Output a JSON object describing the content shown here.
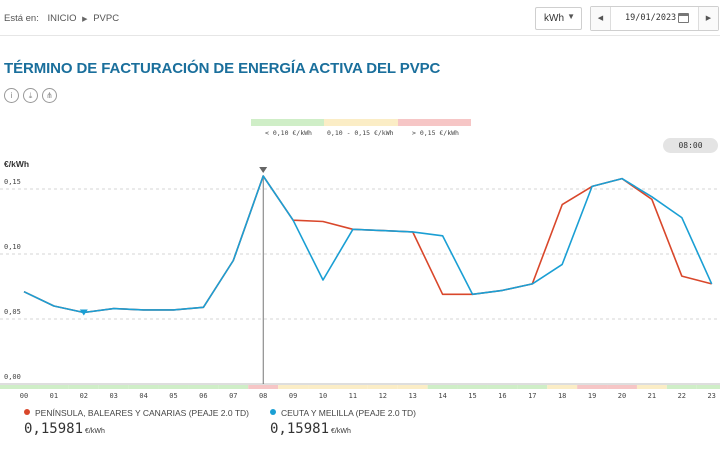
{
  "header": {
    "breadcrumb_label": "Está en:",
    "breadcrumb_items": [
      "INICIO",
      "PVPC"
    ],
    "unit_select": "kWh",
    "date": "19/01/2023"
  },
  "title": "TÉRMINO DE FACTURACIÓN DE ENERGÍA ACTIVA DEL PVPC",
  "tools": [
    {
      "name": "info-icon",
      "glyph": "i"
    },
    {
      "name": "download-icon",
      "glyph": "⤓"
    },
    {
      "name": "share-icon",
      "glyph": "⋔"
    }
  ],
  "price_legend": [
    {
      "label": "< 0,10 €/kWh",
      "color": "#cfeec7"
    },
    {
      "label": "0,10 - 0,15 €/kWh",
      "color": "#fbedc6"
    },
    {
      "label": "> 0,15 €/kWh",
      "color": "#f6c6c6"
    }
  ],
  "selected_time": "08:00",
  "series_legend": [
    {
      "name": "PENÍNSULA, BALEARES Y CANARIAS (PEAJE 2.0 TD)",
      "color": "#d9472b",
      "value": "0,15981",
      "unit": "€/kWh"
    },
    {
      "name": "CEUTA Y MELILLA (PEAJE 2.0 TD)",
      "color": "#1a9fd4",
      "value": "0,15981",
      "unit": "€/kWh"
    }
  ],
  "chart_data": {
    "type": "line",
    "ylabel": "€/kWh",
    "ylim": [
      0,
      0.16
    ],
    "yticks": [
      "0,00",
      "0,05",
      "0,10",
      "0,15"
    ],
    "categories": [
      "00",
      "01",
      "02",
      "03",
      "04",
      "05",
      "06",
      "07",
      "08",
      "09",
      "10",
      "11",
      "12",
      "13",
      "14",
      "15",
      "16",
      "17",
      "18",
      "19",
      "20",
      "21",
      "22",
      "23"
    ],
    "series": [
      {
        "name": "PENÍNSULA, BALEARES Y CANARIAS (PEAJE 2.0 TD)",
        "color": "#d9472b",
        "values": [
          0.071,
          0.06,
          0.055,
          0.058,
          0.057,
          0.057,
          0.059,
          0.095,
          0.16,
          0.126,
          0.125,
          0.119,
          0.118,
          0.117,
          0.069,
          0.069,
          0.072,
          0.077,
          0.138,
          0.152,
          0.158,
          0.142,
          0.083,
          0.077
        ]
      },
      {
        "name": "CEUTA Y MELILLA (PEAJE 2.0 TD)",
        "color": "#1a9fd4",
        "values": [
          0.071,
          0.06,
          0.055,
          0.058,
          0.057,
          0.057,
          0.059,
          0.095,
          0.16,
          0.126,
          0.08,
          0.119,
          0.118,
          0.117,
          0.114,
          0.069,
          0.072,
          0.077,
          0.092,
          0.152,
          0.158,
          0.144,
          0.128,
          0.077
        ]
      }
    ],
    "selected_index": 8,
    "min_marker_index": 2,
    "grid": true,
    "price_band": [
      "#cfeec7",
      "#cfeec7",
      "#cfeec7",
      "#cfeec7",
      "#cfeec7",
      "#cfeec7",
      "#cfeec7",
      "#cfeec7",
      "#f6c6c6",
      "#fbedc6",
      "#fbedc6",
      "#fbedc6",
      "#fbedc6",
      "#fbedc6",
      "#cfeec7",
      "#cfeec7",
      "#cfeec7",
      "#cfeec7",
      "#fbedc6",
      "#f6c6c6",
      "#f6c6c6",
      "#fbedc6",
      "#cfeec7",
      "#cfeec7"
    ]
  }
}
